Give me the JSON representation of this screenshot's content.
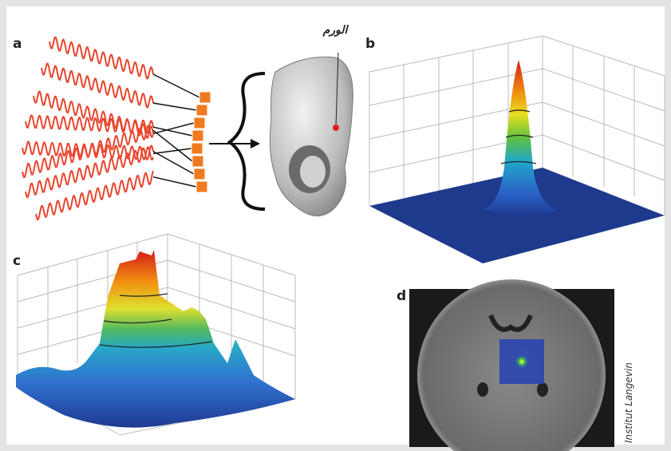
{
  "panels": [
    {
      "label": "a",
      "annotation": "الورم"
    },
    {
      "label": "b"
    },
    {
      "label": "c"
    },
    {
      "label": "d",
      "credit": "Institut Langevin"
    }
  ]
}
